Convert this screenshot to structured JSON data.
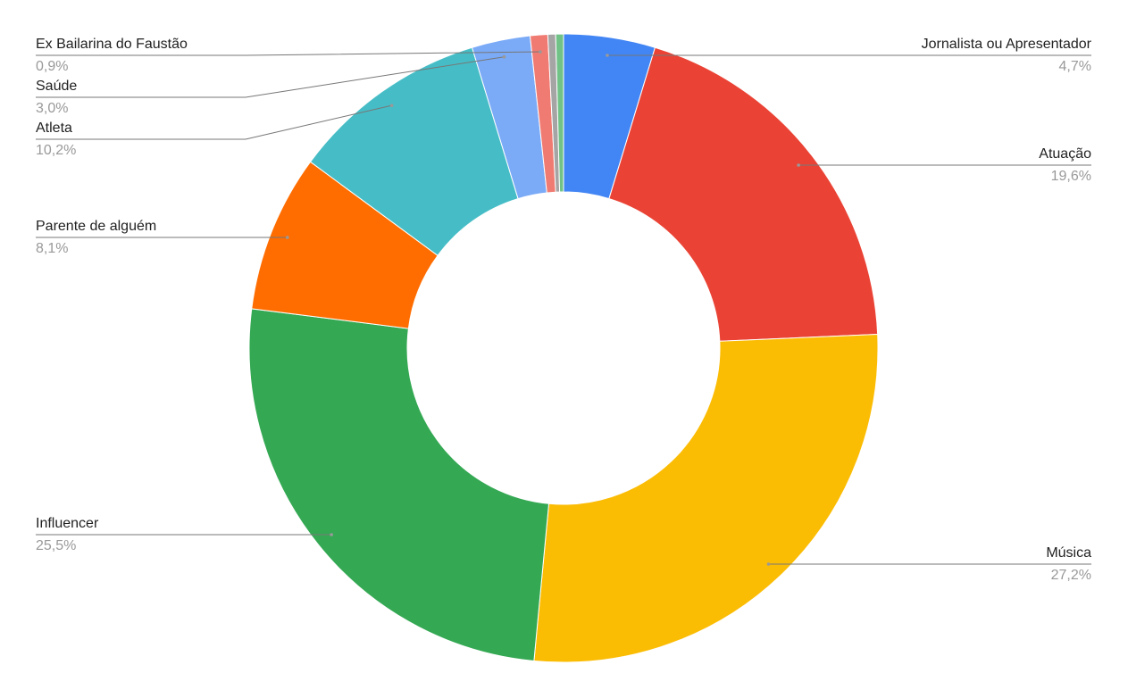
{
  "chart_data": {
    "type": "donut",
    "categories": [
      "Jornalista ou Apresentador",
      "Atuação",
      "Música",
      "Influencer",
      "Parente de alguém",
      "Atleta",
      "Saúde",
      "Ex Bailarina do Faustão",
      null,
      null
    ],
    "values": [
      4.7,
      19.6,
      27.2,
      25.5,
      8.1,
      10.2,
      3.0,
      0.9,
      0.4,
      0.4
    ],
    "value_labels": [
      "4,7%",
      "19,6%",
      "27,2%",
      "25,5%",
      "8,1%",
      "10,2%",
      "3,0%",
      "0,9%",
      null,
      null
    ],
    "colors": [
      "#4285f4",
      "#ea4335",
      "#fbbc04",
      "#34a853",
      "#ff6d01",
      "#46bdc6",
      "#7baaf7",
      "#f07b72",
      "#a5a5a5",
      "#71c287"
    ]
  }
}
